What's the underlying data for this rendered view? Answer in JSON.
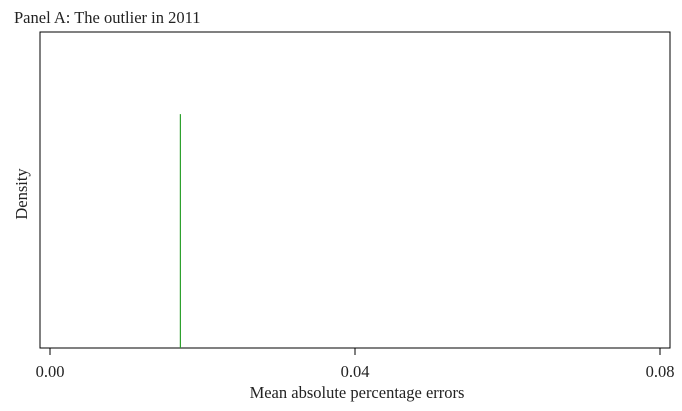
{
  "chart_data": {
    "type": "line",
    "title": "Panel A: The outlier in 2011",
    "xlabel": "Mean absolute percentage errors",
    "ylabel": "Density",
    "xlim": [
      0.0,
      0.08
    ],
    "x_ticks": [
      {
        "value": 0.0,
        "label": "0.00"
      },
      {
        "value": 0.04,
        "label": "0.04"
      },
      {
        "value": 0.08,
        "label": "0.08"
      }
    ],
    "y_ticks_shown": false,
    "grid": false,
    "legend": "none",
    "series": [
      {
        "marker": "vertical-line",
        "x": 0.0171,
        "height_fraction": 0.74,
        "color": "#2ca02c"
      }
    ]
  }
}
